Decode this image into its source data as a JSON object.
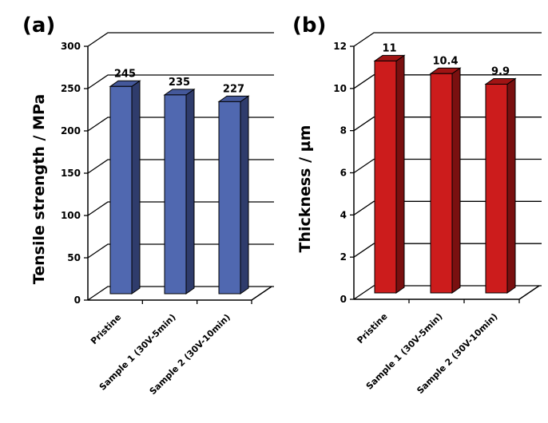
{
  "chart_data": [
    {
      "type": "bar",
      "panel_label": "(a)",
      "categories": [
        "Pristine",
        "Sample 1 (30V-5min)",
        "Sample 2 (30V-10min)"
      ],
      "values": [
        245,
        235,
        227
      ],
      "data_labels": [
        "245",
        "235",
        "227"
      ],
      "xlabel": "",
      "ylabel": "Tensile strength / MPa",
      "ylim": [
        0,
        300
      ],
      "yticks": [
        "0",
        "50",
        "100",
        "150",
        "200",
        "250",
        "300"
      ],
      "ytick_values": [
        0,
        50,
        100,
        150,
        200,
        250,
        300
      ],
      "grid": true,
      "legend": "none",
      "style": "3d-column",
      "colors": {
        "front": "#5068b0",
        "side": "#2f3c6c",
        "top": "#44589a"
      }
    },
    {
      "type": "bar",
      "panel_label": "(b)",
      "categories": [
        "Pristine",
        "Sample 1 (30V-5min)",
        "Sample 2 (30V-10min)"
      ],
      "values": [
        11,
        10.4,
        9.9
      ],
      "data_labels": [
        "11",
        "10.4",
        "9.9"
      ],
      "xlabel": "",
      "ylabel": "Thickness / µm",
      "ylim": [
        0,
        12
      ],
      "yticks": [
        "0",
        "2",
        "4",
        "6",
        "8",
        "10",
        "12"
      ],
      "ytick_values": [
        0,
        2,
        4,
        6,
        8,
        10,
        12
      ],
      "grid": true,
      "legend": "none",
      "style": "3d-column",
      "colors": {
        "front": "#cc1c1c",
        "side": "#7a1010",
        "top": "#a01414"
      }
    }
  ]
}
